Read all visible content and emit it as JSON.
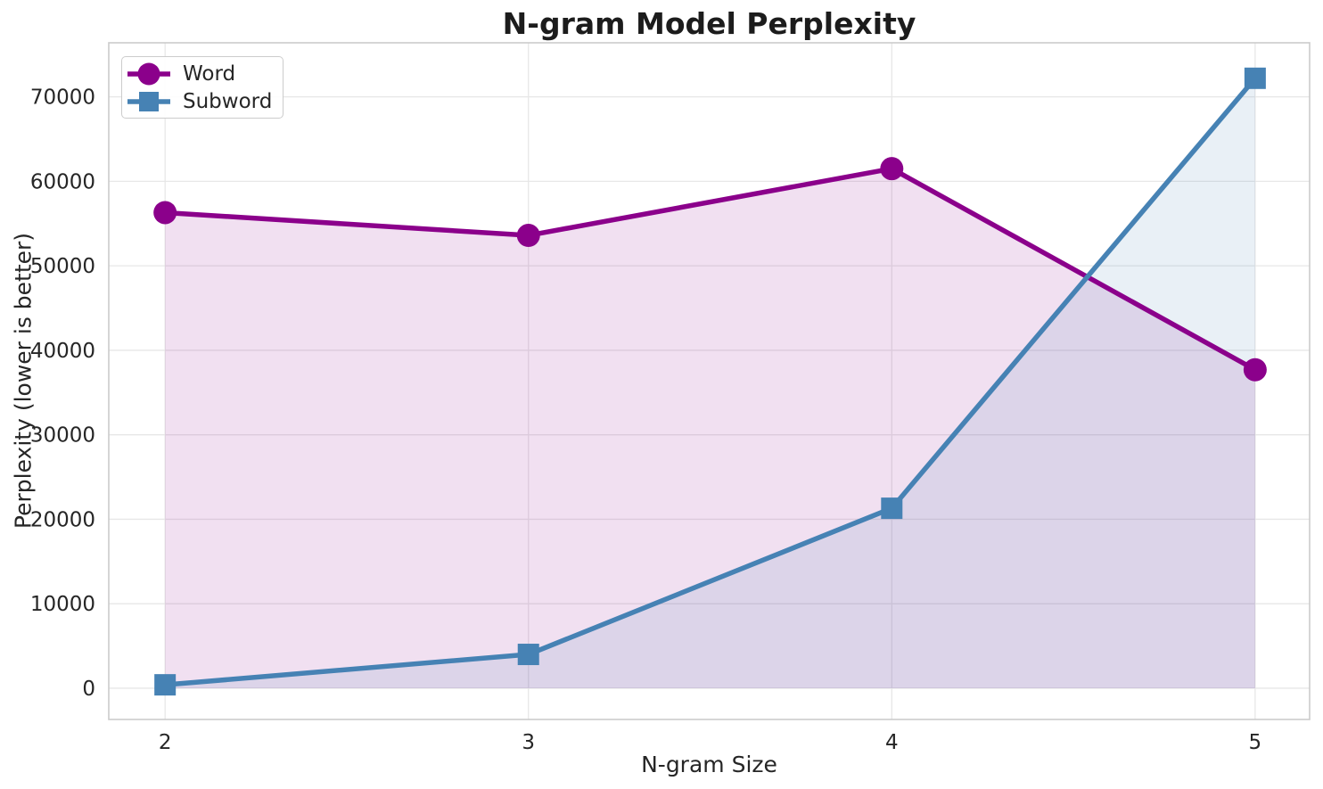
{
  "chart_data": {
    "type": "line",
    "title": "N-gram Model Perplexity",
    "xlabel": "N-gram Size",
    "ylabel": "Perplexity (lower is better)",
    "x": [
      2,
      3,
      4,
      5
    ],
    "series": [
      {
        "name": "Word",
        "marker": "circle",
        "color": "#8B008B",
        "fill_opacity": 0.12,
        "values": [
          56300,
          53600,
          61500,
          37700
        ]
      },
      {
        "name": "Subword",
        "marker": "square",
        "color": "#4682B4",
        "fill_opacity": 0.12,
        "values": [
          400,
          4000,
          21300,
          72200
        ]
      }
    ],
    "xticks": [
      "2",
      "3",
      "4",
      "5"
    ],
    "yticks": [
      0,
      10000,
      20000,
      30000,
      40000,
      50000,
      60000,
      70000
    ],
    "xlim": [
      1.845,
      5.15
    ],
    "ylim": [
      -3700,
      76400
    ],
    "grid": true,
    "area_fill": true,
    "fill_baseline": 0,
    "legend_position": "upper left",
    "colors": {
      "grid": "#e7e7e7",
      "spine": "#cbcbcb",
      "tick_text": "#262626"
    }
  }
}
